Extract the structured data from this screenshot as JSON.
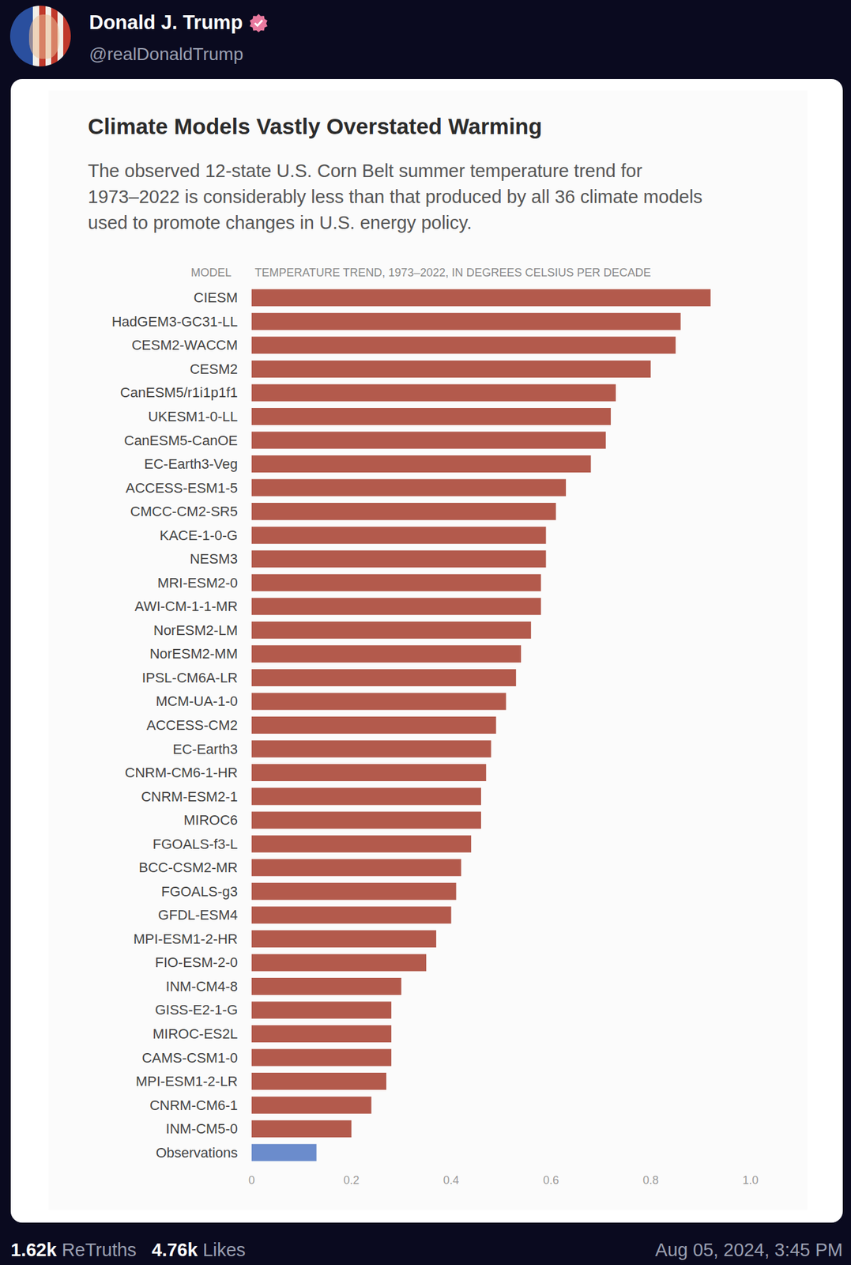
{
  "post": {
    "name": "Donald J. Trump",
    "handle": "@realDonaldTrump",
    "retruths": "1.62k",
    "retruths_label": "ReTruths",
    "likes": "4.76k",
    "likes_label": "Likes",
    "date": "Aug 05, 2024, 3:45 PM"
  },
  "chart_data": {
    "type": "bar",
    "orientation": "horizontal",
    "title": "Climate Models Vastly Overstated Warming",
    "subtitle": "The observed 12-state U.S. Corn Belt summer temperature trend for 1973–2022 is considerably less than that produced by all 36 climate models used to promote changes in U.S. energy policy.",
    "ylabel": "MODEL",
    "xlabel": "TEMPERATURE TREND, 1973–2022, IN DEGREES CELSIUS PER DECADE",
    "categories": [
      "CIESM",
      "HadGEM3-GC31-LL",
      "CESM2-WACCM",
      "CESM2",
      "CanESM5/r1i1p1f1",
      "UKESM1-0-LL",
      "CanESM5-CanOE",
      "EC-Earth3-Veg",
      "ACCESS-ESM1-5",
      "CMCC-CM2-SR5",
      "KACE-1-0-G",
      "NESM3",
      "MRI-ESM2-0",
      "AWI-CM-1-1-MR",
      "NorESM2-LM",
      "NorESM2-MM",
      "IPSL-CM6A-LR",
      "MCM-UA-1-0",
      "ACCESS-CM2",
      "EC-Earth3",
      "CNRM-CM6-1-HR",
      "CNRM-ESM2-1",
      "MIROC6",
      "FGOALS-f3-L",
      "BCC-CSM2-MR",
      "FGOALS-g3",
      "GFDL-ESM4",
      "MPI-ESM1-2-HR",
      "FIO-ESM-2-0",
      "INM-CM4-8",
      "GISS-E2-1-G",
      "MIROC-ES2L",
      "CAMS-CSM1-0",
      "MPI-ESM1-2-LR",
      "CNRM-CM6-1",
      "INM-CM5-0",
      "Observations"
    ],
    "values": [
      0.92,
      0.86,
      0.85,
      0.8,
      0.73,
      0.72,
      0.71,
      0.68,
      0.63,
      0.61,
      0.59,
      0.59,
      0.58,
      0.58,
      0.56,
      0.54,
      0.53,
      0.51,
      0.49,
      0.48,
      0.47,
      0.46,
      0.46,
      0.44,
      0.42,
      0.41,
      0.4,
      0.37,
      0.35,
      0.3,
      0.28,
      0.28,
      0.28,
      0.27,
      0.24,
      0.2,
      0.13
    ],
    "colors": [
      "#b35a4c",
      "#b35a4c",
      "#b35a4c",
      "#b35a4c",
      "#b35a4c",
      "#b35a4c",
      "#b35a4c",
      "#b35a4c",
      "#b35a4c",
      "#b35a4c",
      "#b35a4c",
      "#b35a4c",
      "#b35a4c",
      "#b35a4c",
      "#b35a4c",
      "#b35a4c",
      "#b35a4c",
      "#b35a4c",
      "#b35a4c",
      "#b35a4c",
      "#b35a4c",
      "#b35a4c",
      "#b35a4c",
      "#b35a4c",
      "#b35a4c",
      "#b35a4c",
      "#b35a4c",
      "#b35a4c",
      "#b35a4c",
      "#b35a4c",
      "#b35a4c",
      "#b35a4c",
      "#b35a4c",
      "#b35a4c",
      "#b35a4c",
      "#b35a4c",
      "#6b8ccc"
    ],
    "xlim": [
      0,
      1
    ],
    "xticks": [
      0,
      0.2,
      0.4,
      0.6,
      0.8,
      {
        "value": 1,
        "label": "1.0"
      }
    ],
    "grid": false
  }
}
